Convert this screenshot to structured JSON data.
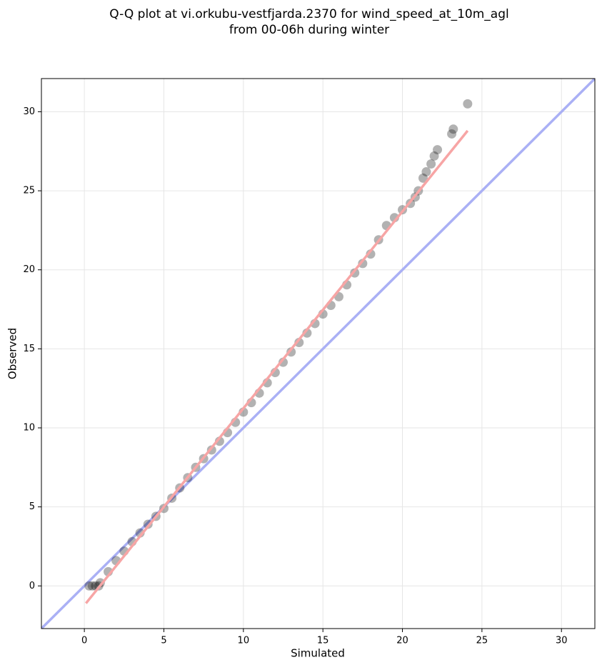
{
  "chart_data": {
    "type": "scatter",
    "title": [
      "Q-Q plot at vi.orkubu-vestfjarda.2370 for wind_speed_at_10m_agl",
      "from 00-06h during winter"
    ],
    "x_label": "Simulated",
    "y_label": "Observed",
    "xlim": [
      -2.7,
      32.1
    ],
    "ylim": [
      -2.7,
      32.1
    ],
    "xticks": [
      0,
      5,
      10,
      15,
      20,
      25,
      30
    ],
    "yticks": [
      0,
      5,
      10,
      15,
      20,
      25,
      30
    ],
    "grid": true,
    "series": [
      {
        "color": "#000000",
        "x": [
          0.3,
          0.5,
          0.7,
          0.9,
          1.0,
          1.5,
          2,
          2.5,
          3,
          3.5,
          4,
          4.5,
          5,
          5.5,
          6,
          6.5,
          7,
          7.5,
          8,
          8.5,
          9,
          9.5,
          10,
          10.5,
          11,
          11.5,
          12,
          12.5,
          13,
          13.5,
          14,
          14.5,
          15,
          15.5,
          16,
          16.5,
          17,
          17.5,
          18,
          18.5,
          19,
          19.5,
          20,
          20.5,
          20.8,
          21,
          21.3,
          21.5,
          21.8,
          22,
          22.2,
          23.1,
          23.2,
          24.1
        ],
        "values": [
          0,
          0,
          0,
          0,
          0.2,
          0.9,
          1.6,
          2.2,
          2.8,
          3.35,
          3.9,
          4.4,
          4.9,
          5.55,
          6.2,
          6.85,
          7.5,
          8.05,
          8.6,
          9.15,
          9.7,
          10.35,
          11,
          11.6,
          12.2,
          12.85,
          13.5,
          14.15,
          14.8,
          15.4,
          16,
          16.6,
          17.2,
          17.75,
          18.3,
          19.05,
          19.8,
          20.4,
          21,
          21.9,
          22.8,
          23.3,
          23.8,
          24.2,
          24.6,
          25,
          25.8,
          26.2,
          26.7,
          27.2,
          27.6,
          28.6,
          28.9,
          30.5
        ]
      }
    ],
    "lines": [
      {
        "color": "#aab0f5",
        "x": [
          -2.7,
          32.1
        ],
        "values": [
          -2.7,
          32.1
        ]
      },
      {
        "color": "#f7a5a5",
        "x": [
          0.1,
          24.1
        ],
        "values": [
          -1.1,
          28.8
        ]
      }
    ]
  }
}
